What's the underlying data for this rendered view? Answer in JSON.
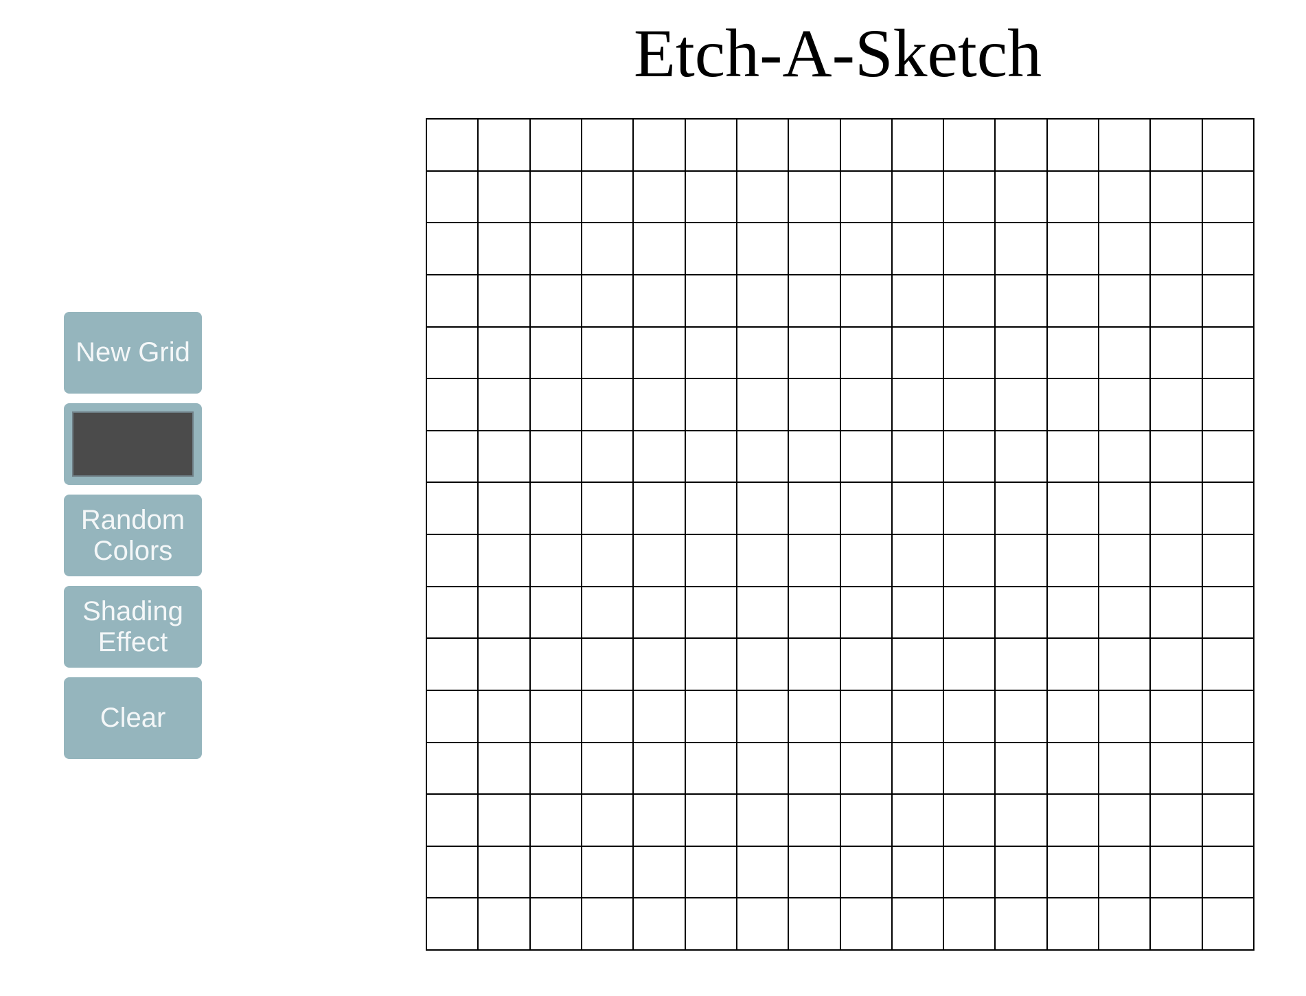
{
  "app": {
    "title": "Etch-A-Sketch"
  },
  "controls": {
    "new_grid_label": "New Grid",
    "random_colors_label": "Random\nColors",
    "shading_effect_label": "Shading\nEffect",
    "clear_label": "Clear",
    "color_picker_value": "#4b4b4b"
  },
  "grid": {
    "rows": 16,
    "columns": 16
  },
  "colors": {
    "button_background": "#95b5bd",
    "button_text": "#f4f7f8",
    "grid_line": "#000000",
    "cell_background": "#ffffff"
  }
}
